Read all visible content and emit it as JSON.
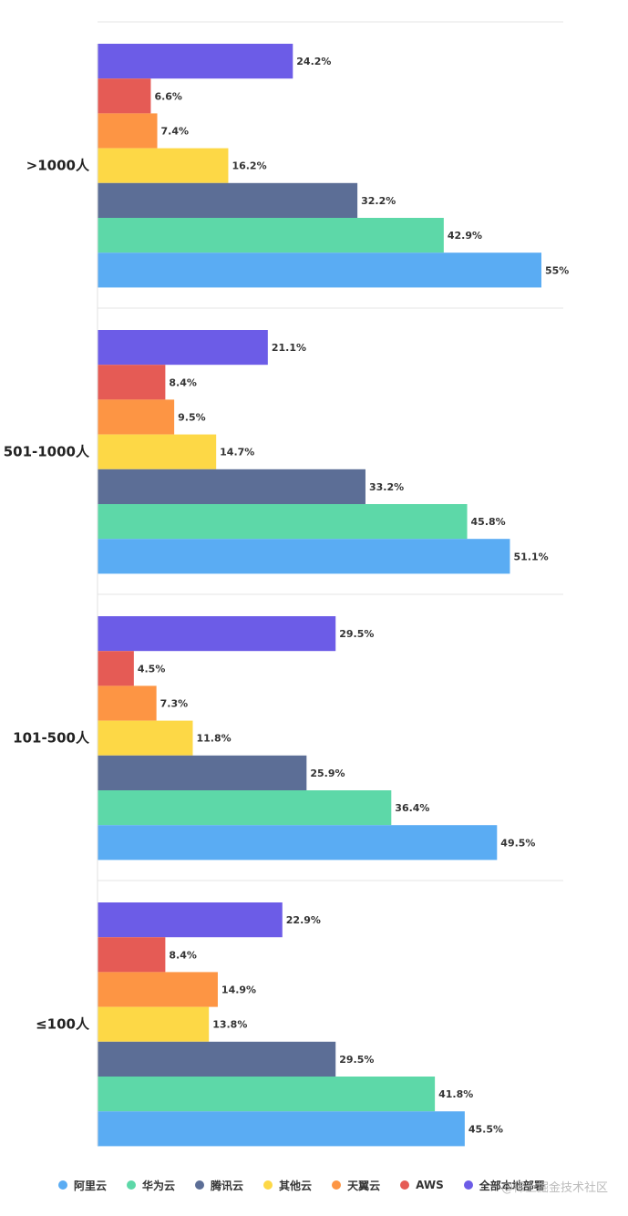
{
  "chart_data": {
    "type": "bar",
    "orientation": "horizontal",
    "categories": [
      ">1000人",
      "501-1000人",
      "101-500人",
      "≤100人"
    ],
    "series": [
      {
        "name": "全部本地部署",
        "color": "#6c5ce7",
        "values": [
          24.2,
          21.1,
          29.5,
          22.9
        ]
      },
      {
        "name": "AWS",
        "color": "#e55b55",
        "values": [
          6.6,
          8.4,
          4.5,
          8.4
        ]
      },
      {
        "name": "天翼云",
        "color": "#fd9544",
        "values": [
          7.4,
          9.5,
          7.3,
          14.9
        ]
      },
      {
        "name": "其他云",
        "color": "#fdd846",
        "values": [
          16.2,
          14.7,
          11.8,
          13.8
        ]
      },
      {
        "name": "腾讯云",
        "color": "#5c6e96",
        "values": [
          32.2,
          33.2,
          25.9,
          29.5
        ]
      },
      {
        "name": "华为云",
        "color": "#5dd8a8",
        "values": [
          42.9,
          45.8,
          36.4,
          41.8
        ]
      },
      {
        "name": "阿里云",
        "color": "#5aacf3",
        "values": [
          55,
          51.1,
          49.5,
          45.5
        ]
      }
    ],
    "value_labels": [
      [
        "24.2%",
        "6.6%",
        "7.4%",
        "16.2%",
        "32.2%",
        "42.9%",
        "55%"
      ],
      [
        "21.1%",
        "8.4%",
        "9.5%",
        "14.7%",
        "33.2%",
        "45.8%",
        "51.1%"
      ],
      [
        "29.5%",
        "4.5%",
        "7.3%",
        "11.8%",
        "25.9%",
        "36.4%",
        "49.5%"
      ],
      [
        "22.9%",
        "8.4%",
        "14.9%",
        "13.8%",
        "29.5%",
        "41.8%",
        "45.5%"
      ]
    ],
    "xlim": [
      0,
      55
    ],
    "legend_order": [
      "阿里云",
      "华为云",
      "腾讯云",
      "其他云",
      "天翼云",
      "AWS",
      "全部本地部署"
    ],
    "legend_position": "bottom",
    "grid": false
  },
  "legend": {
    "items": [
      {
        "label": "阿里云",
        "color": "#5aacf3"
      },
      {
        "label": "华为云",
        "color": "#5dd8a8"
      },
      {
        "label": "腾讯云",
        "color": "#5c6e96"
      },
      {
        "label": "其他云",
        "color": "#fdd846"
      },
      {
        "label": "天翼云",
        "color": "#fd9544"
      },
      {
        "label": "AWS",
        "color": "#e55b55"
      },
      {
        "label": "全部本地部署",
        "color": "#6c5ce7"
      }
    ]
  },
  "watermark": "@稀土掘金技术社区"
}
